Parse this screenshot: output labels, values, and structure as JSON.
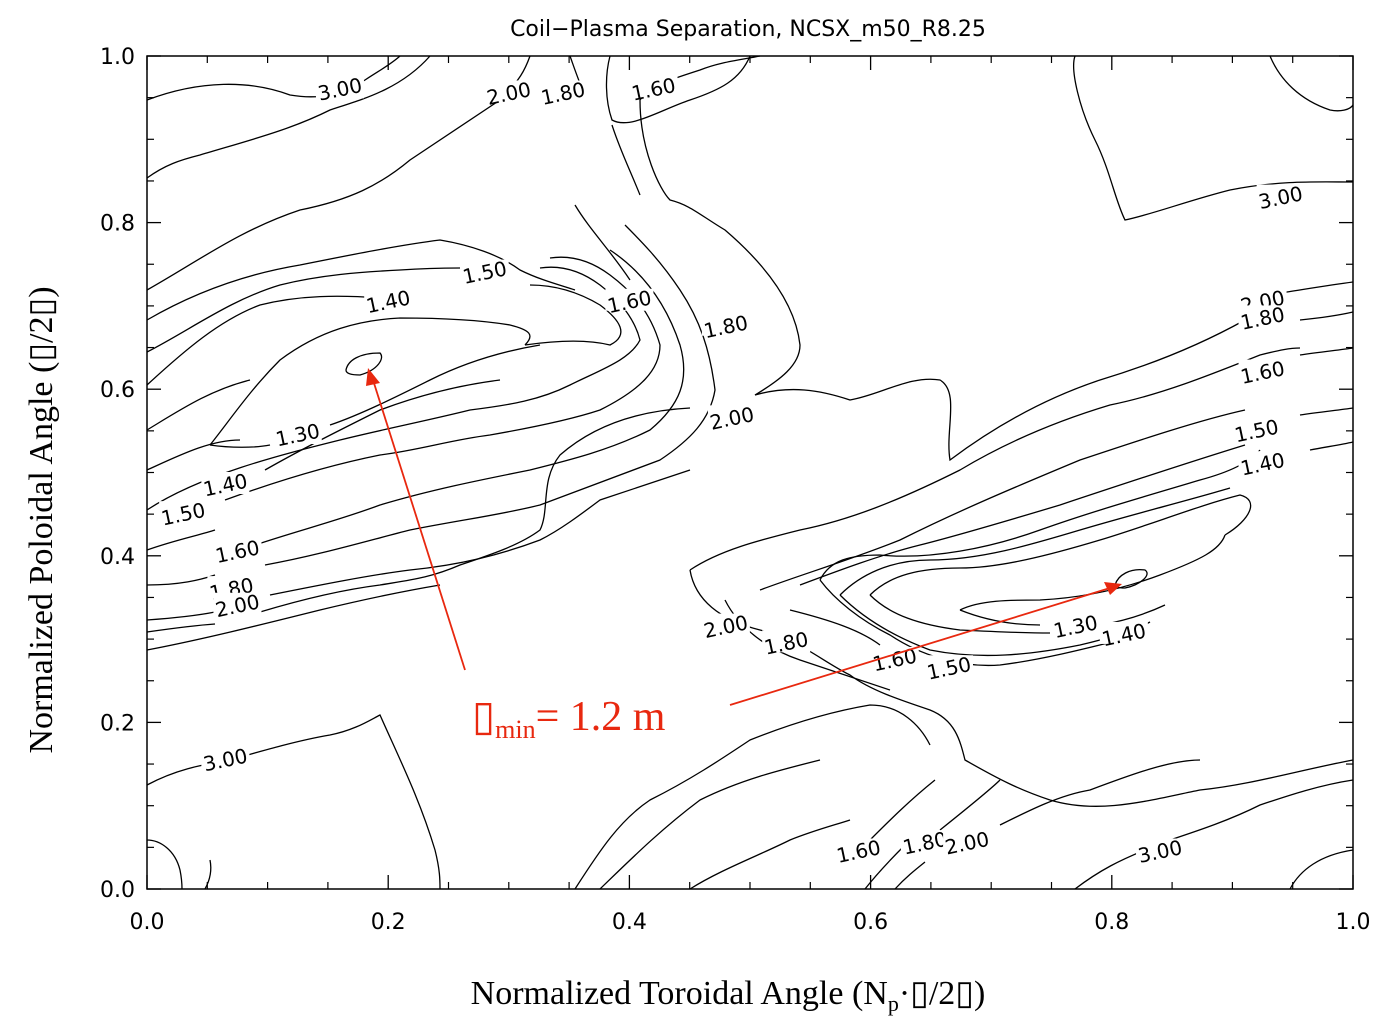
{
  "chart_data": {
    "type": "contour",
    "title": "Coil−Plasma Separation, NCSX_m50_R8.25",
    "xlabel": "Normalized Toroidal Angle (N",
    "xlabel_sub": "p",
    "xlabel_rest": "·▯/2▯)",
    "ylabel": "Normalized Poloidal Angle (▯/2▯)",
    "xlim": [
      0.0,
      1.0
    ],
    "ylim": [
      0.0,
      1.0
    ],
    "xticks": [
      "0.0",
      "0.2",
      "0.4",
      "0.6",
      "0.8",
      "1.0"
    ],
    "yticks": [
      "0.0",
      "0.2",
      "0.4",
      "0.6",
      "0.8",
      "1.0"
    ],
    "contour_levels": [
      1.3,
      1.4,
      1.5,
      1.6,
      1.8,
      2.0,
      3.0
    ],
    "contour_labels": [
      {
        "text": "3.00",
        "x": 0.16,
        "y": 0.96
      },
      {
        "text": "2.00",
        "x": 0.3,
        "y": 0.955
      },
      {
        "text": "1.80",
        "x": 0.345,
        "y": 0.955
      },
      {
        "text": "1.60",
        "x": 0.42,
        "y": 0.96
      },
      {
        "text": "3.00",
        "x": 0.94,
        "y": 0.83
      },
      {
        "text": "1.50",
        "x": 0.28,
        "y": 0.74
      },
      {
        "text": "1.40",
        "x": 0.2,
        "y": 0.705
      },
      {
        "text": "1.60",
        "x": 0.4,
        "y": 0.705
      },
      {
        "text": "1.80",
        "x": 0.48,
        "y": 0.675
      },
      {
        "text": "2.00",
        "x": 0.925,
        "y": 0.705
      },
      {
        "text": "1.80",
        "x": 0.925,
        "y": 0.685
      },
      {
        "text": "1.60",
        "x": 0.925,
        "y": 0.62
      },
      {
        "text": "2.00",
        "x": 0.485,
        "y": 0.565
      },
      {
        "text": "1.30",
        "x": 0.125,
        "y": 0.545
      },
      {
        "text": "1.50",
        "x": 0.92,
        "y": 0.55
      },
      {
        "text": "1.40",
        "x": 0.925,
        "y": 0.51
      },
      {
        "text": "1.40",
        "x": 0.065,
        "y": 0.485
      },
      {
        "text": "1.50",
        "x": 0.03,
        "y": 0.45
      },
      {
        "text": "1.60",
        "x": 0.075,
        "y": 0.405
      },
      {
        "text": "1.80",
        "x": 0.07,
        "y": 0.36
      },
      {
        "text": "2.00",
        "x": 0.075,
        "y": 0.34
      },
      {
        "text": "2.00",
        "x": 0.48,
        "y": 0.315
      },
      {
        "text": "1.80",
        "x": 0.53,
        "y": 0.295
      },
      {
        "text": "1.30",
        "x": 0.77,
        "y": 0.315
      },
      {
        "text": "1.40",
        "x": 0.81,
        "y": 0.305
      },
      {
        "text": "1.60",
        "x": 0.62,
        "y": 0.275
      },
      {
        "text": "1.50",
        "x": 0.665,
        "y": 0.265
      },
      {
        "text": "3.00",
        "x": 0.065,
        "y": 0.155
      },
      {
        "text": "1.60",
        "x": 0.59,
        "y": 0.045
      },
      {
        "text": "1.80",
        "x": 0.645,
        "y": 0.055
      },
      {
        "text": "2.00",
        "x": 0.68,
        "y": 0.055
      },
      {
        "text": "3.00",
        "x": 0.84,
        "y": 0.045
      }
    ],
    "minima": [
      {
        "x": 0.19,
        "y": 0.62
      },
      {
        "x": 0.82,
        "y": 0.37
      }
    ],
    "annotation": {
      "symbol": "▯",
      "subscript": "min",
      "text": "= 1.2 m",
      "color": "#e8280f"
    }
  }
}
